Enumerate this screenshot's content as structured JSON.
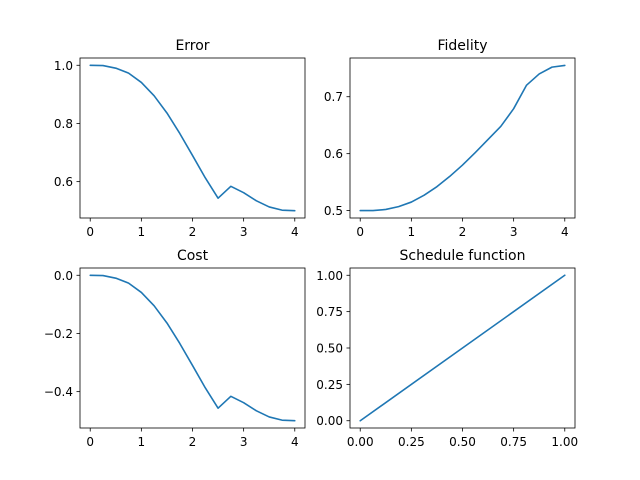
{
  "line_color": "#1f77b4",
  "chart_data": [
    {
      "type": "line",
      "title": "Error",
      "xlabel": "",
      "ylabel": "",
      "grid": false,
      "xlim": [
        -0.2,
        4.2
      ],
      "ylim": [
        0.475,
        1.025
      ],
      "xticks": [
        0,
        1,
        2,
        3,
        4
      ],
      "xtick_labels": [
        "0",
        "1",
        "2",
        "3",
        "4"
      ],
      "yticks": [
        0.6,
        0.8,
        1.0
      ],
      "ytick_labels": [
        "0.6",
        "0.8",
        "1.0"
      ],
      "series": [
        {
          "x": [
            0,
            0.25,
            0.5,
            0.75,
            1.0,
            1.25,
            1.5,
            1.75,
            2.0,
            2.25,
            2.5,
            2.75,
            3.0,
            3.25,
            3.5,
            3.75,
            4.0
          ],
          "y": [
            1.0,
            0.999,
            0.99,
            0.973,
            0.941,
            0.895,
            0.836,
            0.766,
            0.69,
            0.613,
            0.543,
            0.584,
            0.562,
            0.534,
            0.513,
            0.502,
            0.5
          ]
        }
      ]
    },
    {
      "type": "line",
      "title": "Fidelity",
      "xlabel": "",
      "ylabel": "",
      "grid": false,
      "xlim": [
        -0.2,
        4.2
      ],
      "ylim": [
        0.487,
        0.768
      ],
      "xticks": [
        0,
        1,
        2,
        3,
        4
      ],
      "xtick_labels": [
        "0",
        "1",
        "2",
        "3",
        "4"
      ],
      "yticks": [
        0.5,
        0.6,
        0.7
      ],
      "ytick_labels": [
        "0.5",
        "0.6",
        "0.7"
      ],
      "series": [
        {
          "x": [
            0,
            0.25,
            0.5,
            0.75,
            1.0,
            1.25,
            1.5,
            1.75,
            2.0,
            2.25,
            2.5,
            2.75,
            3.0,
            3.25,
            3.5,
            3.75,
            4.0
          ],
          "y": [
            0.5,
            0.5,
            0.502,
            0.507,
            0.515,
            0.527,
            0.542,
            0.56,
            0.58,
            0.602,
            0.625,
            0.648,
            0.679,
            0.72,
            0.74,
            0.752,
            0.755
          ]
        }
      ]
    },
    {
      "type": "line",
      "title": "Cost",
      "xlabel": "",
      "ylabel": "",
      "grid": false,
      "xlim": [
        -0.2,
        4.2
      ],
      "ylim": [
        -0.525,
        0.025
      ],
      "xticks": [
        0,
        1,
        2,
        3,
        4
      ],
      "xtick_labels": [
        "0",
        "1",
        "2",
        "3",
        "4"
      ],
      "yticks": [
        0.0,
        -0.2,
        -0.4
      ],
      "ytick_labels": [
        "0.0",
        "−0.2",
        "−0.4"
      ],
      "series": [
        {
          "x": [
            0,
            0.25,
            0.5,
            0.75,
            1.0,
            1.25,
            1.5,
            1.75,
            2.0,
            2.25,
            2.5,
            2.75,
            3.0,
            3.25,
            3.5,
            3.75,
            4.0
          ],
          "y": [
            0.0,
            -0.001,
            -0.01,
            -0.027,
            -0.059,
            -0.105,
            -0.164,
            -0.234,
            -0.31,
            -0.387,
            -0.457,
            -0.416,
            -0.438,
            -0.466,
            -0.487,
            -0.498,
            -0.5
          ]
        }
      ]
    },
    {
      "type": "line",
      "title": "Schedule function",
      "xlabel": "",
      "ylabel": "",
      "grid": false,
      "xlim": [
        -0.05,
        1.05
      ],
      "ylim": [
        -0.05,
        1.05
      ],
      "xticks": [
        0.0,
        0.25,
        0.5,
        0.75,
        1.0
      ],
      "xtick_labels": [
        "0.00",
        "0.25",
        "0.50",
        "0.75",
        "1.00"
      ],
      "yticks": [
        0.0,
        0.25,
        0.5,
        0.75,
        1.0
      ],
      "ytick_labels": [
        "0.00",
        "0.25",
        "0.50",
        "0.75",
        "1.00"
      ],
      "series": [
        {
          "x": [
            0.0,
            1.0
          ],
          "y": [
            0.0,
            1.0
          ]
        }
      ]
    }
  ]
}
